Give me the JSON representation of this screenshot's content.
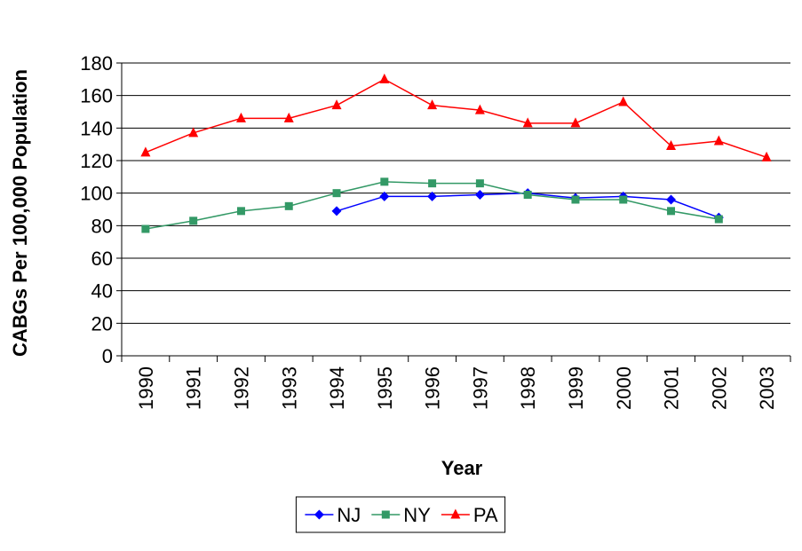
{
  "chart_data": {
    "type": "line",
    "y_label": "CABGs Per 100,000  Population",
    "x_label": "Year",
    "categories": [
      "1990",
      "1991",
      "1992",
      "1993",
      "1994",
      "1995",
      "1996",
      "1997",
      "1998",
      "1999",
      "2000",
      "2001",
      "2002",
      "2003"
    ],
    "series": [
      {
        "name": "NJ",
        "color": "#0000ff",
        "marker": "diamond",
        "values": [
          null,
          null,
          null,
          null,
          89,
          98,
          98,
          99,
          100,
          97,
          98,
          96,
          85,
          null
        ]
      },
      {
        "name": "NY",
        "color": "#339966",
        "marker": "square",
        "values": [
          78,
          83,
          89,
          92,
          100,
          107,
          106,
          106,
          99,
          96,
          96,
          89,
          84,
          null
        ]
      },
      {
        "name": "PA",
        "color": "#ff0000",
        "marker": "triangle",
        "values": [
          125,
          137,
          146,
          146,
          154,
          170,
          154,
          151,
          143,
          143,
          156,
          129,
          132,
          122
        ]
      }
    ],
    "ylim": [
      0,
      180
    ],
    "yticks": [
      0,
      20,
      40,
      60,
      80,
      100,
      120,
      140,
      160,
      180
    ],
    "grid": true,
    "legend": "bottom"
  }
}
